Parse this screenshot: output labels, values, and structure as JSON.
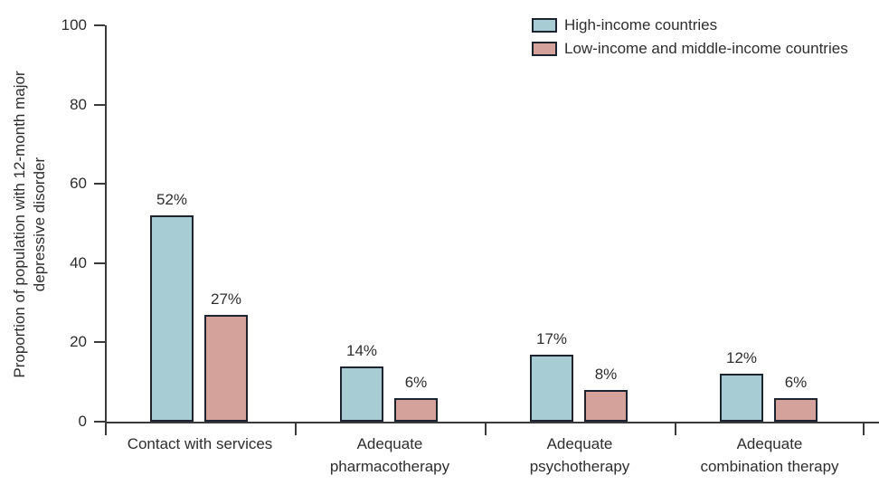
{
  "figure": {
    "ylabel": "Proportion of population with 12-month major\ndepressive disorder"
  },
  "chart_data": {
    "type": "bar",
    "title": "",
    "xlabel": "",
    "ylabel": "Proportion of population with 12-month major depressive disorder",
    "ylim": [
      0,
      100
    ],
    "yticks": [
      0,
      20,
      40,
      60,
      80,
      100
    ],
    "grid": false,
    "legend_position": "top-right",
    "categories": [
      "Contact with services",
      "Adequate\npharmacotherapy",
      "Adequate\npsychotherapy",
      "Adequate\ncombination therapy"
    ],
    "series": [
      {
        "name": "High-income countries",
        "color": "#a7ccd4",
        "values": [
          52,
          14,
          17,
          12
        ],
        "value_labels": [
          "52%",
          "14%",
          "17%",
          "12%"
        ]
      },
      {
        "name": "Low-income and middle-income countries",
        "color": "#d4a19b",
        "values": [
          27,
          6,
          8,
          6
        ],
        "value_labels": [
          "27%",
          "6%",
          "8%",
          "6%"
        ]
      }
    ],
    "bar_border_color": "#1e2330",
    "axis_color": "#3a3a3a",
    "text_color": "#2e2e2e"
  }
}
